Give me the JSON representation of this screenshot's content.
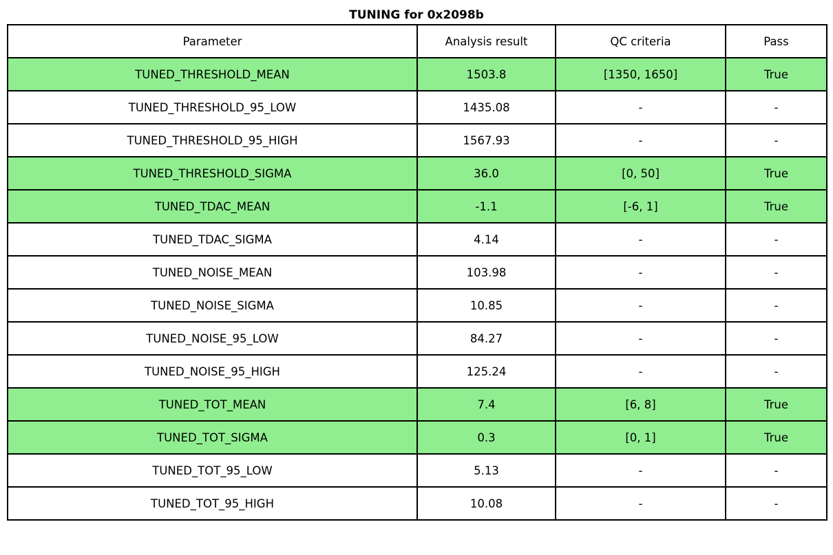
{
  "title": "TUNING for 0x2098b",
  "colors": {
    "highlight": "#90EE90",
    "border": "#000000",
    "text": "#000000",
    "background": "#FFFFFF"
  },
  "chart_data": {
    "type": "table",
    "title": "TUNING for 0x2098b",
    "columns": [
      "Parameter",
      "Analysis result",
      "QC criteria",
      "Pass"
    ],
    "rows": [
      {
        "parameter": "TUNED_THRESHOLD_MEAN",
        "result": "1503.8",
        "qc": "[1350, 1650]",
        "pass": "True",
        "highlight": true
      },
      {
        "parameter": "TUNED_THRESHOLD_95_LOW",
        "result": "1435.08",
        "qc": "-",
        "pass": "-",
        "highlight": false
      },
      {
        "parameter": "TUNED_THRESHOLD_95_HIGH",
        "result": "1567.93",
        "qc": "-",
        "pass": "-",
        "highlight": false
      },
      {
        "parameter": "TUNED_THRESHOLD_SIGMA",
        "result": "36.0",
        "qc": "[0, 50]",
        "pass": "True",
        "highlight": true
      },
      {
        "parameter": "TUNED_TDAC_MEAN",
        "result": "-1.1",
        "qc": "[-6, 1]",
        "pass": "True",
        "highlight": true
      },
      {
        "parameter": "TUNED_TDAC_SIGMA",
        "result": "4.14",
        "qc": "-",
        "pass": "-",
        "highlight": false
      },
      {
        "parameter": "TUNED_NOISE_MEAN",
        "result": "103.98",
        "qc": "-",
        "pass": "-",
        "highlight": false
      },
      {
        "parameter": "TUNED_NOISE_SIGMA",
        "result": "10.85",
        "qc": "-",
        "pass": "-",
        "highlight": false
      },
      {
        "parameter": "TUNED_NOISE_95_LOW",
        "result": "84.27",
        "qc": "-",
        "pass": "-",
        "highlight": false
      },
      {
        "parameter": "TUNED_NOISE_95_HIGH",
        "result": "125.24",
        "qc": "-",
        "pass": "-",
        "highlight": false
      },
      {
        "parameter": "TUNED_TOT_MEAN",
        "result": "7.4",
        "qc": "[6, 8]",
        "pass": "True",
        "highlight": true
      },
      {
        "parameter": "TUNED_TOT_SIGMA",
        "result": "0.3",
        "qc": "[0, 1]",
        "pass": "True",
        "highlight": true
      },
      {
        "parameter": "TUNED_TOT_95_LOW",
        "result": "5.13",
        "qc": "-",
        "pass": "-",
        "highlight": false
      },
      {
        "parameter": "TUNED_TOT_95_HIGH",
        "result": "10.08",
        "qc": "-",
        "pass": "-",
        "highlight": false
      }
    ]
  }
}
